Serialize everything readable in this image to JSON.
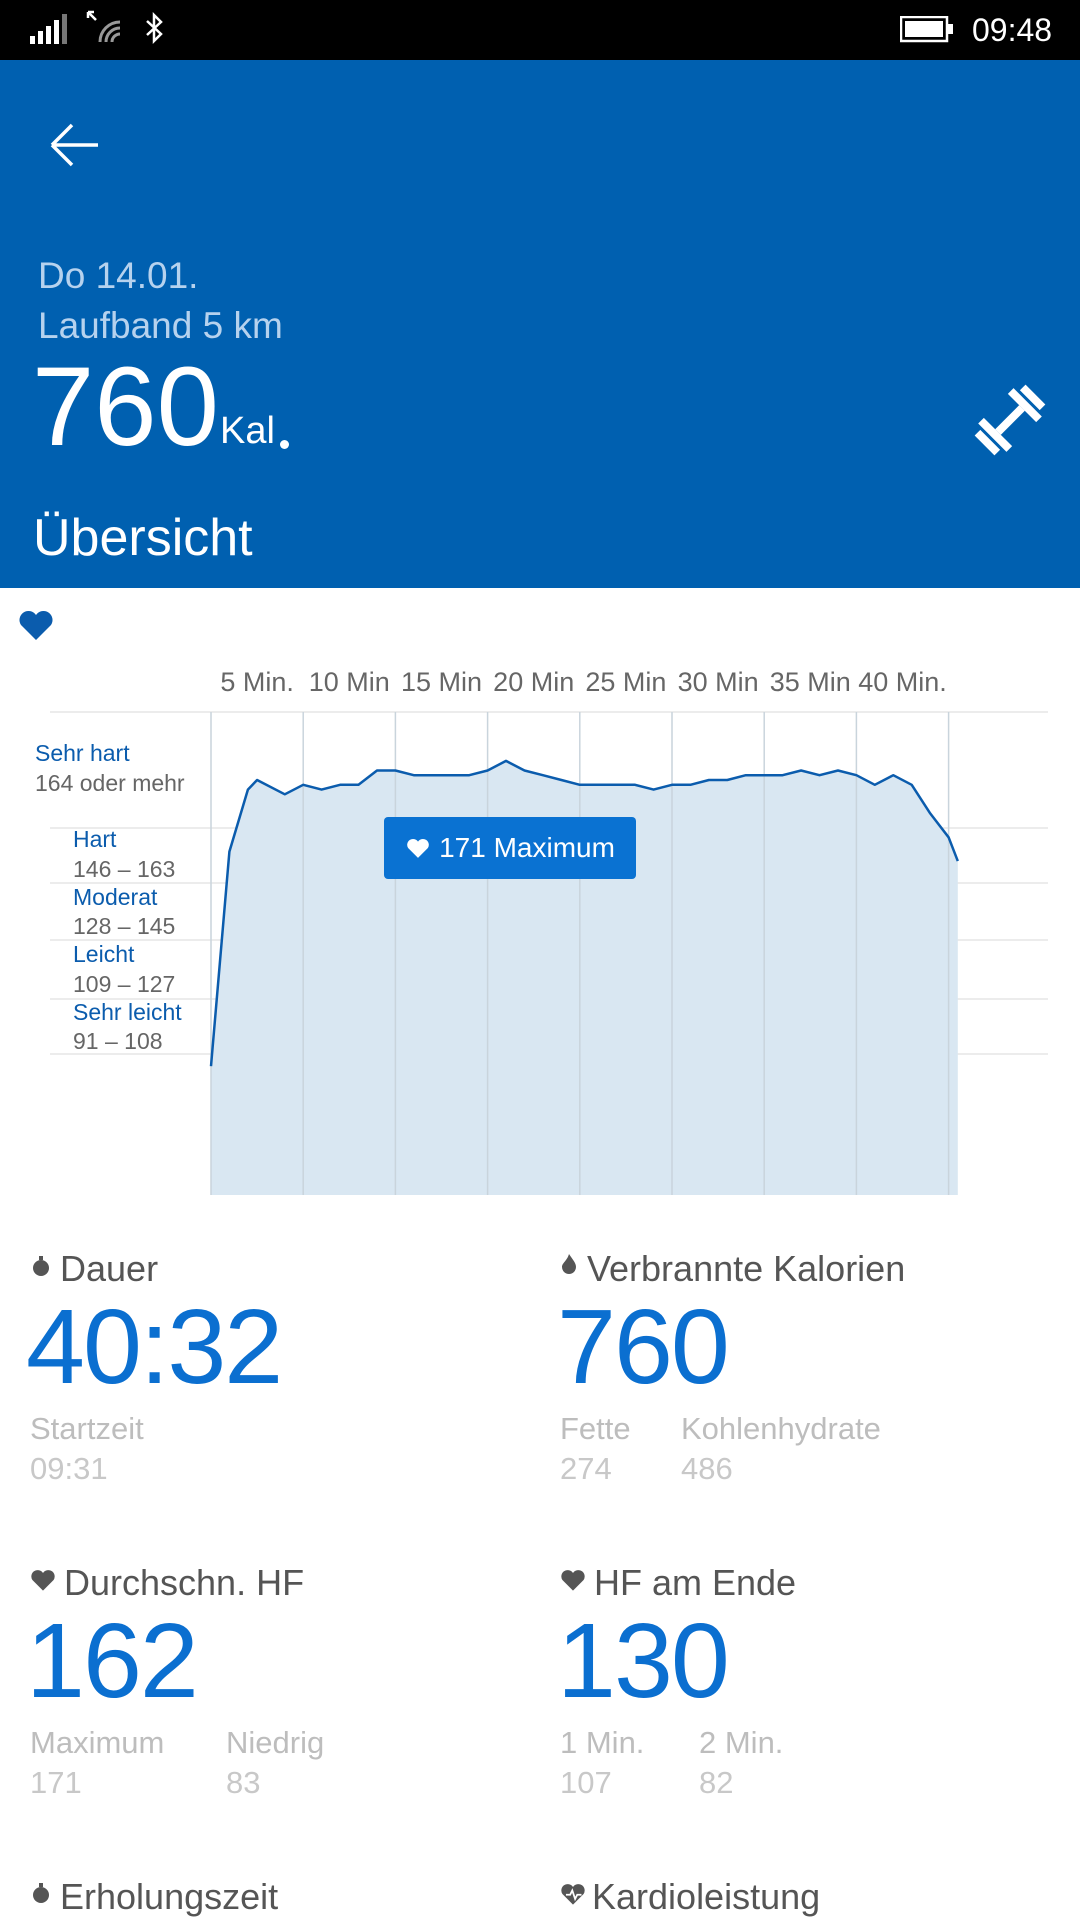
{
  "status_bar": {
    "time": "09:48"
  },
  "header": {
    "date": "Do 14.01.",
    "activity": "Laufband 5 km",
    "calories": "760",
    "calories_unit": "Kal",
    "tab": "Übersicht"
  },
  "chart": {
    "tooltip": "171 Maximum",
    "zones": [
      {
        "name": "Sehr hart",
        "range": "164 oder mehr"
      },
      {
        "name": "Hart",
        "range": "146 – 163"
      },
      {
        "name": "Moderat",
        "range": "128 – 145"
      },
      {
        "name": "Leicht",
        "range": "109 – 127"
      },
      {
        "name": "Sehr leicht",
        "range": "91 – 108"
      }
    ]
  },
  "chart_data": {
    "type": "area",
    "x_tick_labels": [
      "5 Min.",
      "10 Min",
      "15 Min",
      "20 Min",
      "25 Min",
      "30 Min",
      "35 Min",
      "40 Min."
    ],
    "x": [
      0,
      1,
      2,
      2.5,
      4,
      5,
      6,
      7,
      8,
      9,
      9.5,
      10,
      11,
      12,
      13,
      14,
      15,
      16,
      17,
      18,
      19,
      20,
      21,
      22,
      23,
      24,
      25,
      26,
      27,
      28,
      29,
      30,
      31,
      32,
      33,
      34,
      35,
      36,
      37,
      38,
      39,
      40,
      40.5
    ],
    "y": [
      107,
      152,
      165,
      167,
      164,
      166,
      165,
      166,
      166,
      169,
      169,
      169,
      168,
      168,
      168,
      168,
      169,
      171,
      169,
      168,
      167,
      166,
      166,
      166,
      166,
      165,
      166,
      166,
      167,
      167,
      168,
      168,
      168,
      169,
      168,
      169,
      168,
      166,
      168,
      166,
      160,
      155,
      150
    ],
    "ylim": [
      80,
      180
    ]
  },
  "stats": {
    "duration": {
      "label": "Dauer",
      "value": "40:32",
      "sub": [
        {
          "label": "Startzeit",
          "value": "09:31"
        }
      ]
    },
    "calories": {
      "label": "Verbrannte Kalorien",
      "value": "760",
      "sub": [
        {
          "label": "Fette",
          "value": "274"
        },
        {
          "label": "Kohlenhydrate",
          "value": "486"
        }
      ]
    },
    "avg_hr": {
      "label": "Durchschn. HF",
      "value": "162",
      "sub": [
        {
          "label": "Maximum",
          "value": "171"
        },
        {
          "label": "Niedrig",
          "value": "83"
        }
      ]
    },
    "end_hr": {
      "label": "HF am Ende",
      "value": "130",
      "sub": [
        {
          "label": "1 Min.",
          "value": "107"
        },
        {
          "label": "2 Min.",
          "value": "82"
        }
      ]
    },
    "recovery": {
      "label": "Erholungszeit"
    },
    "cardio": {
      "label": "Kardioleistung"
    }
  }
}
